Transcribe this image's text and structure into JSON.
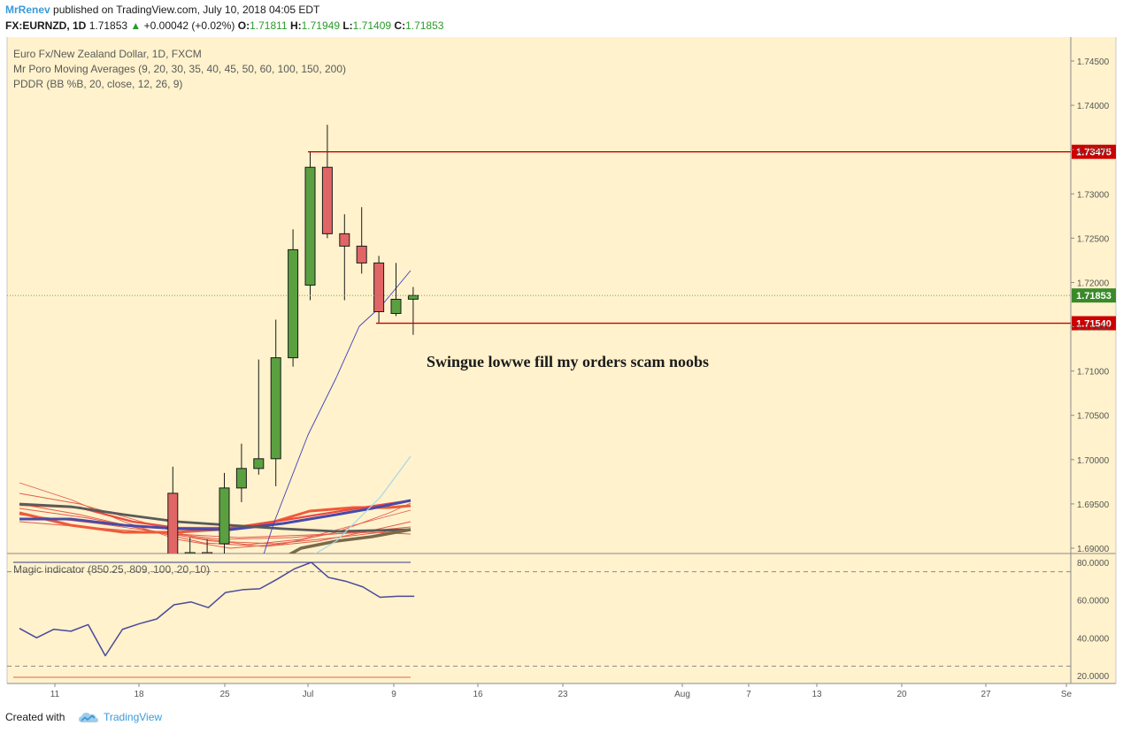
{
  "header": {
    "author": "MrRenev",
    "published_text": "published on TradingView.com, July 10, 2018 04:05 EDT",
    "symbol": "FX:EURNZD, 1D",
    "last_price": "1.71853",
    "change_arrow": "▲",
    "change": "+0.00042 (+0.02%)",
    "o_label": "O:",
    "o_value": "1.71811",
    "h_label": "H:",
    "h_value": "1.71949",
    "l_label": "L:",
    "l_value": "1.71409",
    "c_label": "C:",
    "c_value": "1.71853"
  },
  "legend": {
    "line1": "Euro Fx/New Zealand Dollar, 1D, FXCM",
    "line2": "Mr Poro Moving Averages (9, 20, 30, 35, 40, 45, 50, 60, 100, 150, 200)",
    "line3": "PDDR (BB %B, 20, close, 12, 26, 9)"
  },
  "annotation": "Swingue lowwe fill my orders scam noobs",
  "footer": {
    "created_with": "Created with",
    "brand": "TradingView"
  },
  "colors": {
    "background": "#fff2cc",
    "bull": "#5aa041",
    "bear": "#e06666",
    "level_line": "#cc0000",
    "indicator_line": "#4a4a9a",
    "price_tag": "#3a8a2a"
  },
  "chart_data": {
    "type": "candlestick",
    "price_axis": {
      "ticks": [
        "1.74500",
        "1.74000",
        "1.73500",
        "1.73000",
        "1.72500",
        "1.72000",
        "1.71500",
        "1.71000",
        "1.70500",
        "1.70000",
        "1.69500",
        "1.69000"
      ],
      "range": [
        1.69,
        1.748
      ]
    },
    "x_axis": {
      "ticks": [
        "11",
        "18",
        "25",
        "Jul",
        "9",
        "16",
        "23",
        "Aug",
        "7",
        "13",
        "20",
        "27",
        "Se"
      ]
    },
    "candles": [
      {
        "o": 1.6962,
        "h": 1.6992,
        "l": 1.688,
        "c": 1.6885
      },
      {
        "o": 1.6885,
        "h": 1.6912,
        "l": 1.687,
        "c": 1.6895
      },
      {
        "o": 1.6895,
        "h": 1.691,
        "l": 1.686,
        "c": 1.689
      },
      {
        "o": 1.6905,
        "h": 1.6985,
        "l": 1.683,
        "c": 1.6968
      },
      {
        "o": 1.6968,
        "h": 1.7018,
        "l": 1.6952,
        "c": 1.699
      },
      {
        "o": 1.699,
        "h": 1.7113,
        "l": 1.6983,
        "c": 1.7001
      },
      {
        "o": 1.7001,
        "h": 1.7158,
        "l": 1.697,
        "c": 1.7115
      },
      {
        "o": 1.7115,
        "h": 1.726,
        "l": 1.7105,
        "c": 1.7237
      },
      {
        "o": 1.7197,
        "h": 1.7347,
        "l": 1.718,
        "c": 1.733
      },
      {
        "o": 1.733,
        "h": 1.7378,
        "l": 1.725,
        "c": 1.7255
      },
      {
        "o": 1.7255,
        "h": 1.7277,
        "l": 1.718,
        "c": 1.7241
      },
      {
        "o": 1.7241,
        "h": 1.7285,
        "l": 1.721,
        "c": 1.7222
      },
      {
        "o": 1.7222,
        "h": 1.723,
        "l": 1.7154,
        "c": 1.7167
      },
      {
        "o": 1.7165,
        "h": 1.7222,
        "l": 1.7162,
        "c": 1.7181
      },
      {
        "o": 1.71811,
        "h": 1.71949,
        "l": 1.71409,
        "c": 1.71853
      }
    ],
    "levels": [
      {
        "label": "1.73475",
        "value": 1.73475
      },
      {
        "label": "1.71540",
        "value": 1.7154
      }
    ],
    "last_price": {
      "label": "1.71853",
      "value": 1.71853
    },
    "indicator": {
      "name": "Magic indicator (850.25, 809, 100, 20, 10)",
      "ticks": [
        "80.0000",
        "60.0000",
        "40.0000",
        "20.0000"
      ],
      "range": [
        18,
        82
      ],
      "values": [
        45,
        40,
        44.5,
        43.5,
        47,
        30.5,
        44.5,
        47.5,
        50,
        57.5,
        59,
        56,
        64,
        65.5,
        66,
        71,
        76.5,
        80,
        72,
        70,
        67,
        61.5,
        62,
        62
      ],
      "upper_band": 80,
      "dash_upper": 75,
      "dash_lower": 25
    }
  }
}
